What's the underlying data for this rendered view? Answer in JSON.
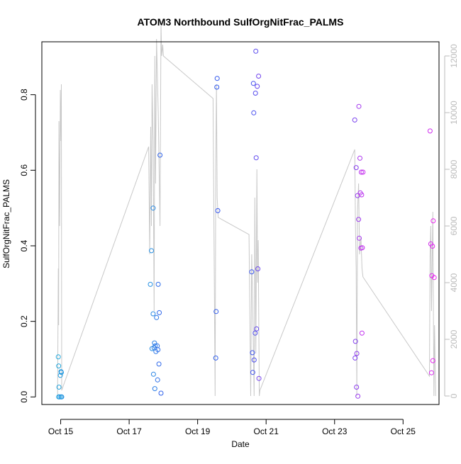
{
  "chart_data": {
    "type": "scatter",
    "title": "ATOM3 Northbound SulfOrgNitFrac_PALMS",
    "xlabel": "Date",
    "ylabel": "SulfOrgNitFrac_PALMS",
    "x_ticks": [
      {
        "label": "Oct 15",
        "day": 14.85
      },
      {
        "label": "Oct 17",
        "day": 16.85
      },
      {
        "label": "Oct 19",
        "day": 18.85
      },
      {
        "label": "Oct 21",
        "day": 20.85
      },
      {
        "label": "Oct 23",
        "day": 22.85
      },
      {
        "label": "Oct 25",
        "day": 24.85
      }
    ],
    "xlim": [
      14.3,
      25.9
    ],
    "ylim": [
      -0.02,
      0.94
    ],
    "y_ticks": [
      0.0,
      0.2,
      0.4,
      0.6,
      0.8
    ],
    "y_tick_labels": [
      "0.0",
      "0.2",
      "0.4",
      "0.6",
      "0.8"
    ],
    "y2_ticks": [
      0,
      2000,
      4000,
      6000,
      8000,
      10000,
      12000
    ],
    "y2_tick_labels": [
      "0",
      "2000",
      "4000",
      "6000",
      "8000",
      "10000",
      "12000"
    ],
    "y2lim": [
      -300,
      12500
    ],
    "colors": {
      "point_start": "#22aadd",
      "point_mid": "#3355ee",
      "point_end": "#ee22ee",
      "altitude_line": "#c8c8c8",
      "axis": "#000000",
      "right_axis": "#bbbbbb"
    },
    "points": [
      [
        14.78,
        0.106
      ],
      [
        14.79,
        0.082
      ],
      [
        14.8,
        0.026
      ],
      [
        14.79,
        0.0
      ],
      [
        14.82,
        0.0
      ],
      [
        14.84,
        0.057
      ],
      [
        14.86,
        0.067
      ],
      [
        14.87,
        0.065
      ],
      [
        14.88,
        0.0
      ],
      [
        14.86,
        0.0
      ],
      [
        17.47,
        0.298
      ],
      [
        17.5,
        0.387
      ],
      [
        17.52,
        0.128
      ],
      [
        17.55,
        0.5
      ],
      [
        17.55,
        0.22
      ],
      [
        17.56,
        0.06
      ],
      [
        17.58,
        0.13
      ],
      [
        17.59,
        0.143
      ],
      [
        17.6,
        0.022
      ],
      [
        17.61,
        0.135
      ],
      [
        17.63,
        0.12
      ],
      [
        17.65,
        0.21
      ],
      [
        17.67,
        0.135
      ],
      [
        17.68,
        0.045
      ],
      [
        17.69,
        0.125
      ],
      [
        17.7,
        0.298
      ],
      [
        17.72,
        0.087
      ],
      [
        17.73,
        0.223
      ],
      [
        17.75,
        0.64
      ],
      [
        17.78,
        0.01
      ],
      [
        19.38,
        0.103
      ],
      [
        19.39,
        0.226
      ],
      [
        19.41,
        0.82
      ],
      [
        19.42,
        0.843
      ],
      [
        19.44,
        0.493
      ],
      [
        20.43,
        0.331
      ],
      [
        20.45,
        0.117
      ],
      [
        20.46,
        0.065
      ],
      [
        20.48,
        0.83
      ],
      [
        20.49,
        0.752
      ],
      [
        20.5,
        0.098
      ],
      [
        20.53,
        0.169
      ],
      [
        20.54,
        0.804
      ],
      [
        20.55,
        0.915
      ],
      [
        20.56,
        0.633
      ],
      [
        20.57,
        0.18
      ],
      [
        20.59,
        0.822
      ],
      [
        20.61,
        0.339
      ],
      [
        20.63,
        0.849
      ],
      [
        20.64,
        0.049
      ],
      [
        23.44,
        0.733
      ],
      [
        23.45,
        0.103
      ],
      [
        23.46,
        0.147
      ],
      [
        23.48,
        0.607
      ],
      [
        23.49,
        0.026
      ],
      [
        23.5,
        0.115
      ],
      [
        23.52,
        0.533
      ],
      [
        23.53,
        0.002
      ],
      [
        23.55,
        0.47
      ],
      [
        23.56,
        0.769
      ],
      [
        23.57,
        0.42
      ],
      [
        23.59,
        0.632
      ],
      [
        23.6,
        0.54
      ],
      [
        23.62,
        0.394
      ],
      [
        23.63,
        0.595
      ],
      [
        23.64,
        0.535
      ],
      [
        23.65,
        0.169
      ],
      [
        23.66,
        0.395
      ],
      [
        23.68,
        0.595
      ],
      [
        25.64,
        0.704
      ],
      [
        25.66,
        0.405
      ],
      [
        25.68,
        0.064
      ],
      [
        25.69,
        0.321
      ],
      [
        25.71,
        0.399
      ],
      [
        25.72,
        0.096
      ],
      [
        25.73,
        0.466
      ],
      [
        25.76,
        0.316
      ]
    ],
    "altitude": [
      [
        14.76,
        0
      ],
      [
        14.78,
        4500
      ],
      [
        14.79,
        2500
      ],
      [
        14.8,
        9700
      ],
      [
        14.82,
        6000
      ],
      [
        14.84,
        10800
      ],
      [
        14.86,
        9000
      ],
      [
        14.87,
        11000
      ],
      [
        14.88,
        200
      ],
      [
        17.42,
        8800
      ],
      [
        17.45,
        5000
      ],
      [
        17.48,
        9500
      ],
      [
        17.5,
        6000
      ],
      [
        17.52,
        11000
      ],
      [
        17.55,
        9000
      ],
      [
        17.58,
        3000
      ],
      [
        17.6,
        12000
      ],
      [
        17.62,
        7500
      ],
      [
        17.65,
        12600
      ],
      [
        17.7,
        10000
      ],
      [
        17.75,
        6000
      ],
      [
        17.78,
        13100
      ],
      [
        17.8,
        12000
      ],
      [
        17.83,
        12400
      ],
      [
        17.85,
        12000
      ],
      [
        19.3,
        10500
      ],
      [
        19.36,
        0
      ],
      [
        19.38,
        8000
      ],
      [
        19.4,
        11000
      ],
      [
        19.42,
        7000
      ],
      [
        19.45,
        6300
      ],
      [
        20.35,
        5700
      ],
      [
        20.4,
        0
      ],
      [
        20.43,
        5000
      ],
      [
        20.46,
        3000
      ],
      [
        20.5,
        0
      ],
      [
        20.52,
        7000
      ],
      [
        20.55,
        1500
      ],
      [
        20.58,
        8000
      ],
      [
        20.6,
        4000
      ],
      [
        20.62,
        5500
      ],
      [
        20.65,
        0
      ],
      [
        20.67,
        200
      ],
      [
        23.44,
        8700
      ],
      [
        23.46,
        6000
      ],
      [
        23.48,
        4500
      ],
      [
        23.5,
        0
      ],
      [
        23.52,
        6500
      ],
      [
        23.55,
        7500
      ],
      [
        23.58,
        5000
      ],
      [
        23.62,
        5600
      ],
      [
        23.65,
        4500
      ],
      [
        23.68,
        4200
      ],
      [
        25.62,
        700
      ],
      [
        25.64,
        5000
      ],
      [
        25.66,
        6000
      ],
      [
        25.68,
        3000
      ],
      [
        25.72,
        6500
      ],
      [
        25.75,
        0
      ],
      [
        25.77,
        2500
      ],
      [
        25.8,
        0
      ]
    ]
  }
}
